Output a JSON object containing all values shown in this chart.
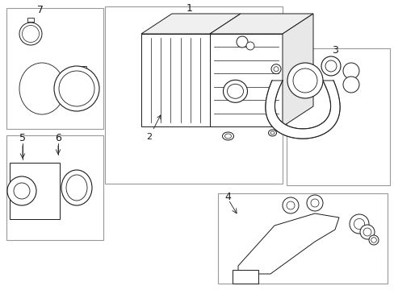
{
  "background_color": "#ffffff",
  "line_color": "#1a1a1a",
  "box_color": "#aaaaaa",
  "fig_width": 4.89,
  "fig_height": 3.6,
  "dpi": 100,
  "lw": 0.7
}
